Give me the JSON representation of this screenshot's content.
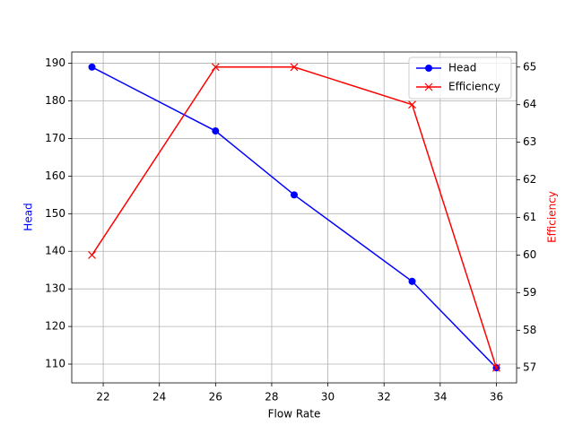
{
  "chart_data": {
    "type": "line",
    "x_label": "Flow Rate",
    "y_label": "Head",
    "y2_label": "Efficiency",
    "x": [
      21.6,
      26,
      28.8,
      33,
      36
    ],
    "series": [
      {
        "name": "Head",
        "color": "#0000ff",
        "marker": "circle",
        "values": [
          189,
          172,
          155,
          132,
          109
        ]
      },
      {
        "name": "Efficiency",
        "color": "#ff0000",
        "marker": "cross",
        "axis": "y2",
        "values": [
          60,
          65,
          65,
          64,
          57
        ]
      }
    ],
    "xlim": [
      20.88,
      36.72
    ],
    "xticks": [
      22,
      24,
      26,
      28,
      30,
      32,
      34,
      36
    ],
    "ylim": [
      105,
      193
    ],
    "yticks": [
      110,
      120,
      130,
      140,
      150,
      160,
      170,
      180,
      190
    ],
    "y2lim": [
      56.6,
      65.4
    ],
    "y2ticks": [
      57,
      58,
      59,
      60,
      61,
      62,
      63,
      64,
      65
    ],
    "grid": true,
    "legend": "upper right"
  }
}
